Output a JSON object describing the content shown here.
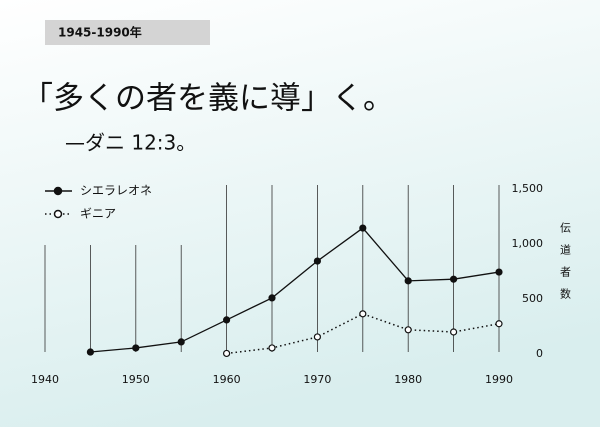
{
  "chart_data": {
    "type": "line",
    "badge": "1945-1990年",
    "title": "「多くの者を義に導」く。",
    "subtitle": "—ダニ 12:3。",
    "y_label": "伝道者数",
    "x": [
      1945,
      1950,
      1955,
      1960,
      1965,
      1970,
      1975,
      1980,
      1985,
      1990
    ],
    "series": [
      {
        "name": "シエラレオネ",
        "color": "#111111",
        "marker": "filled",
        "dash": "solid",
        "values": [
          18,
          55,
          110,
          310,
          510,
          845,
          1145,
          665,
          680,
          745
        ]
      },
      {
        "name": "ギニア",
        "color": "#111111",
        "marker": "hollow",
        "dash": "dotted",
        "values": [
          null,
          null,
          null,
          5,
          55,
          155,
          365,
          220,
          200,
          275
        ]
      }
    ],
    "xlim": [
      1940,
      1990
    ],
    "xticks": [
      1940,
      1950,
      1960,
      1970,
      1980,
      1990
    ],
    "ylim": [
      0,
      1500
    ],
    "yticks": [
      0,
      500,
      {
        "value": 1000,
        "label": "1,000"
      },
      {
        "value": 1500,
        "label": "1,500"
      }
    ],
    "grid": true
  }
}
